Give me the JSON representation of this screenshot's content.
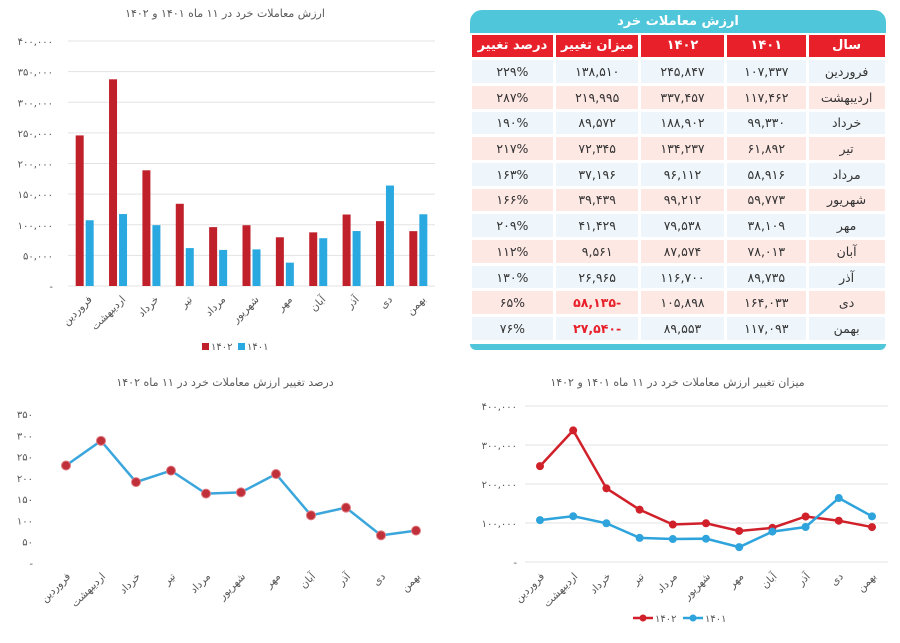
{
  "table": {
    "title": "ارزش معاملات خرد",
    "headers": [
      "سال",
      "۱۴۰۱",
      "۱۴۰۲",
      "میزان تغییر",
      "درصد تغییر"
    ],
    "rows": [
      [
        "فروردین",
        "۱۰۷,۳۳۷",
        "۲۴۵,۸۴۷",
        "۱۳۸,۵۱۰",
        "۲۲۹%"
      ],
      [
        "اردیبهشت",
        "۱۱۷,۴۶۲",
        "۳۳۷,۴۵۷",
        "۲۱۹,۹۹۵",
        "۲۸۷%"
      ],
      [
        "خرداد",
        "۹۹,۳۳۰",
        "۱۸۸,۹۰۲",
        "۸۹,۵۷۲",
        "۱۹۰%"
      ],
      [
        "تیر",
        "۶۱,۸۹۲",
        "۱۳۴,۲۳۷",
        "۷۲,۳۴۵",
        "۲۱۷%"
      ],
      [
        "مرداد",
        "۵۸,۹۱۶",
        "۹۶,۱۱۲",
        "۳۷,۱۹۶",
        "۱۶۳%"
      ],
      [
        "شهریور",
        "۵۹,۷۷۳",
        "۹۹,۲۱۲",
        "۳۹,۴۳۹",
        "۱۶۶%"
      ],
      [
        "مهر",
        "۳۸,۱۰۹",
        "۷۹,۵۳۸",
        "۴۱,۴۲۹",
        "۲۰۹%"
      ],
      [
        "آبان",
        "۷۸,۰۱۳",
        "۸۷,۵۷۴",
        "۹,۵۶۱",
        "۱۱۲%"
      ],
      [
        "آذر",
        "۸۹,۷۳۵",
        "۱۱۶,۷۰۰",
        "۲۶,۹۶۵",
        "۱۳۰%"
      ],
      [
        "دی",
        "۱۶۴,۰۳۳",
        "۱۰۵,۸۹۸",
        "-۵۸,۱۳۵",
        "۶۵%"
      ],
      [
        "بهمن",
        "۱۱۷,۰۹۳",
        "۸۹,۵۵۳",
        "-۲۷,۵۴۰",
        "۷۶%"
      ]
    ]
  },
  "colors": {
    "s1402": "#c0202a",
    "s1401": "#2aa8e0",
    "line1402": "#d0202a",
    "line1401": "#2ea3dc",
    "pct_line": "#3aa6dc",
    "pct_marker": "#c0303a",
    "table_header": "#e8202a",
    "table_title": "#4fc6d9"
  },
  "chart_data": [
    {
      "type": "bar",
      "title": "ارزش معاملات خرد در ۱۱ ماه ۱۴۰۱ و ۱۴۰۲",
      "categories": [
        "فروردین",
        "اردیبهشت",
        "خرداد",
        "تیر",
        "مرداد",
        "شهریور",
        "مهر",
        "آبان",
        "آذر",
        "دی",
        "بهمن"
      ],
      "series": [
        {
          "name": "۱۴۰۲",
          "values": [
            245847,
            337457,
            188902,
            134237,
            96112,
            99212,
            79538,
            87574,
            116700,
            105898,
            89553
          ]
        },
        {
          "name": "۱۴۰۱",
          "values": [
            107337,
            117462,
            99330,
            61892,
            58916,
            59773,
            38109,
            78013,
            89735,
            164033,
            117093
          ]
        }
      ],
      "ylim": [
        0,
        400000
      ],
      "yticks": [
        0,
        50000,
        100000,
        150000,
        200000,
        250000,
        300000,
        350000,
        400000
      ],
      "ytick_labels": [
        "-",
        "۵۰,۰۰۰",
        "۱۰۰,۰۰۰",
        "۱۵۰,۰۰۰",
        "۲۰۰,۰۰۰",
        "۲۵۰,۰۰۰",
        "۳۰۰,۰۰۰",
        "۳۵۰,۰۰۰",
        "۴۰۰,۰۰۰"
      ],
      "grid": true,
      "legend": "bottom"
    },
    {
      "type": "line",
      "title": "درصد تغییر ارزش معاملات خرد در ۱۱ ماه ۱۴۰۲",
      "categories": [
        "فروردین",
        "اردیبهشت",
        "خرداد",
        "تیر",
        "مرداد",
        "شهریور",
        "مهر",
        "آبان",
        "آذر",
        "دی",
        "بهمن"
      ],
      "values": [
        229,
        287,
        190,
        217,
        163,
        166,
        209,
        112,
        130,
        65,
        76
      ],
      "ylim": [
        0,
        350
      ],
      "yticks": [
        0,
        50,
        100,
        150,
        200,
        250,
        300,
        350
      ],
      "ytick_labels": [
        "-",
        "۵۰",
        "۱۰۰",
        "۱۵۰",
        "۲۰۰",
        "۲۵۰",
        "۳۰۰",
        "۳۵۰"
      ],
      "grid": false
    },
    {
      "type": "line",
      "title": "میزان تغییر ارزش معاملات خرد در ۱۱ ماه ۱۴۰۱ و ۱۴۰۲",
      "categories": [
        "فروردین",
        "اردیبهشت",
        "خرداد",
        "تیر",
        "مرداد",
        "شهریور",
        "مهر",
        "آبان",
        "آذر",
        "دی",
        "بهمن"
      ],
      "series": [
        {
          "name": "۱۴۰۲",
          "values": [
            245847,
            337457,
            188902,
            134237,
            96112,
            99212,
            79538,
            87574,
            116700,
            105898,
            89553
          ]
        },
        {
          "name": "۱۴۰۱",
          "values": [
            107337,
            117462,
            99330,
            61892,
            58916,
            59773,
            38109,
            78013,
            89735,
            164033,
            117093
          ]
        }
      ],
      "ylim": [
        0,
        400000
      ],
      "yticks": [
        0,
        100000,
        200000,
        300000,
        400000
      ],
      "ytick_labels": [
        "-",
        "۱۰۰,۰۰۰",
        "۲۰۰,۰۰۰",
        "۳۰۰,۰۰۰",
        "۴۰۰,۰۰۰"
      ],
      "grid": true,
      "legend": "bottom"
    }
  ]
}
